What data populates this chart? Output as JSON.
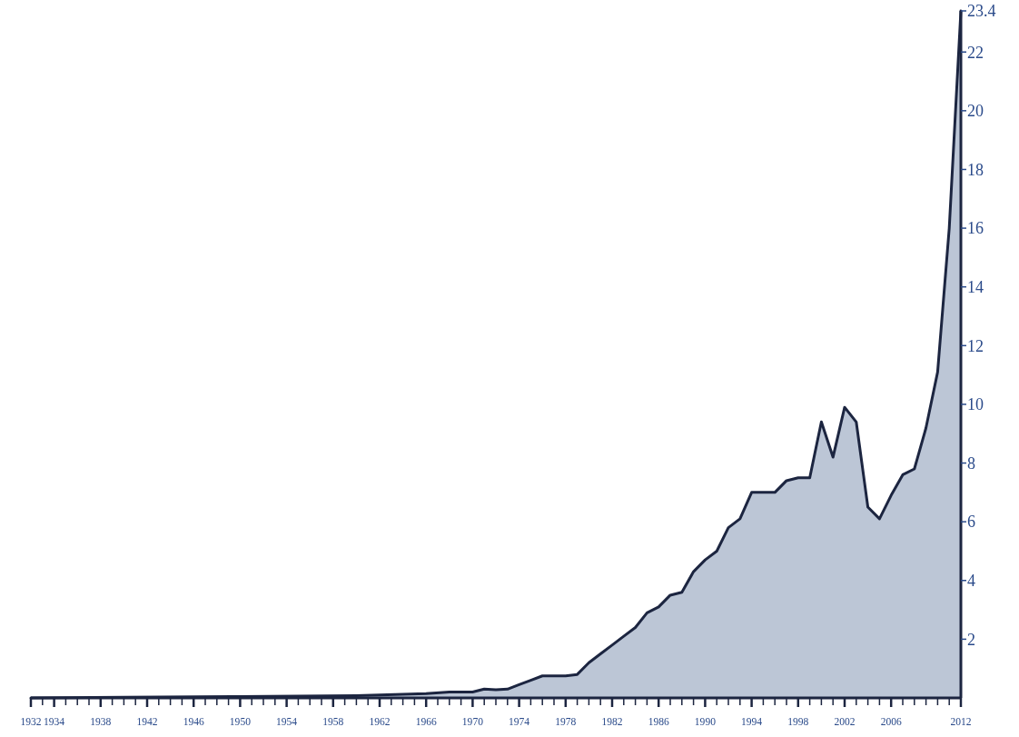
{
  "chart_data": {
    "type": "area",
    "x": [
      1932,
      1940,
      1950,
      1960,
      1964,
      1966,
      1968,
      1970,
      1971,
      1972,
      1973,
      1974,
      1975,
      1976,
      1977,
      1978,
      1979,
      1980,
      1981,
      1982,
      1983,
      1984,
      1985,
      1986,
      1987,
      1988,
      1989,
      1990,
      1991,
      1992,
      1993,
      1994,
      1995,
      1996,
      1997,
      1998,
      1999,
      2000,
      2001,
      2002,
      2003,
      2004,
      2005,
      2006,
      2007,
      2008,
      2009,
      2010,
      2011,
      2012
    ],
    "series": [
      {
        "color": "#bcc6d6",
        "values": [
          0,
          0.02,
          0.05,
          0.08,
          0.12,
          0.15,
          0.2,
          0.2,
          0.3,
          0.28,
          0.3,
          0.45,
          0.6,
          0.75,
          0.75,
          0.75,
          0.8,
          1.2,
          1.5,
          1.8,
          2.1,
          2.4,
          2.9,
          3.1,
          3.5,
          3.6,
          4.3,
          4.7,
          5.0,
          5.8,
          6.1,
          7.0,
          7.0,
          7.0,
          7.4,
          7.5,
          7.5,
          9.4,
          8.2,
          9.9,
          9.4,
          6.5,
          6.1,
          6.9,
          7.6,
          7.8,
          9.2,
          11.1,
          16,
          23.4
        ]
      }
    ],
    "xlim": [
      1932,
      2012
    ],
    "ylim": [
      0,
      23.4
    ],
    "yticks": [
      2,
      4,
      6,
      8,
      10,
      12,
      14,
      16,
      18,
      20,
      22,
      23.4
    ],
    "xticks": [
      1932,
      {
        "value": 1933,
        "label": null
      },
      1934,
      {
        "value": 1935,
        "label": null
      },
      {
        "value": 1936,
        "label": null
      },
      {
        "value": 1937,
        "label": null
      },
      1938,
      {
        "value": 1939,
        "label": null
      },
      {
        "value": 1940,
        "label": null
      },
      {
        "value": 1941,
        "label": null
      },
      1942,
      {
        "value": 1943,
        "label": null
      },
      {
        "value": 1944,
        "label": null
      },
      {
        "value": 1945,
        "label": null
      },
      1946,
      {
        "value": 1947,
        "label": null
      },
      {
        "value": 1948,
        "label": null
      },
      {
        "value": 1949,
        "label": null
      },
      1950,
      {
        "value": 1951,
        "label": null
      },
      {
        "value": 1952,
        "label": null
      },
      {
        "value": 1953,
        "label": null
      },
      1954,
      {
        "value": 1955,
        "label": null
      },
      {
        "value": 1956,
        "label": null
      },
      {
        "value": 1957,
        "label": null
      },
      1958,
      {
        "value": 1959,
        "label": null
      },
      {
        "value": 1960,
        "label": null
      },
      {
        "value": 1961,
        "label": null
      },
      1962,
      {
        "value": 1963,
        "label": null
      },
      {
        "value": 1964,
        "label": null
      },
      {
        "value": 1965,
        "label": null
      },
      1966,
      {
        "value": 1967,
        "label": null
      },
      {
        "value": 1968,
        "label": null
      },
      {
        "value": 1969,
        "label": null
      },
      1970,
      {
        "value": 1971,
        "label": null
      },
      {
        "value": 1972,
        "label": null
      },
      {
        "value": 1973,
        "label": null
      },
      1974,
      {
        "value": 1975,
        "label": null
      },
      {
        "value": 1976,
        "label": null
      },
      {
        "value": 1977,
        "label": null
      },
      1978,
      {
        "value": 1979,
        "label": null
      },
      {
        "value": 1980,
        "label": null
      },
      {
        "value": 1981,
        "label": null
      },
      1982,
      {
        "value": 1983,
        "label": null
      },
      {
        "value": 1984,
        "label": null
      },
      {
        "value": 1985,
        "label": null
      },
      1986,
      {
        "value": 1987,
        "label": null
      },
      {
        "value": 1988,
        "label": null
      },
      {
        "value": 1989,
        "label": null
      },
      1990,
      {
        "value": 1991,
        "label": null
      },
      {
        "value": 1992,
        "label": null
      },
      {
        "value": 1993,
        "label": null
      },
      1994,
      {
        "value": 1995,
        "label": null
      },
      {
        "value": 1996,
        "label": null
      },
      {
        "value": 1997,
        "label": null
      },
      1998,
      {
        "value": 1999,
        "label": null
      },
      {
        "value": 2000,
        "label": null
      },
      {
        "value": 2001,
        "label": null
      },
      2002,
      {
        "value": 2003,
        "label": null
      },
      {
        "value": 2004,
        "label": null
      },
      {
        "value": 2005,
        "label": null
      },
      2006,
      {
        "value": 2007,
        "label": null
      },
      {
        "value": 2008,
        "label": null
      },
      {
        "value": 2009,
        "label": null
      },
      {
        "value": 2010,
        "label": null
      },
      {
        "value": 2011,
        "label": null
      },
      2012
    ]
  }
}
